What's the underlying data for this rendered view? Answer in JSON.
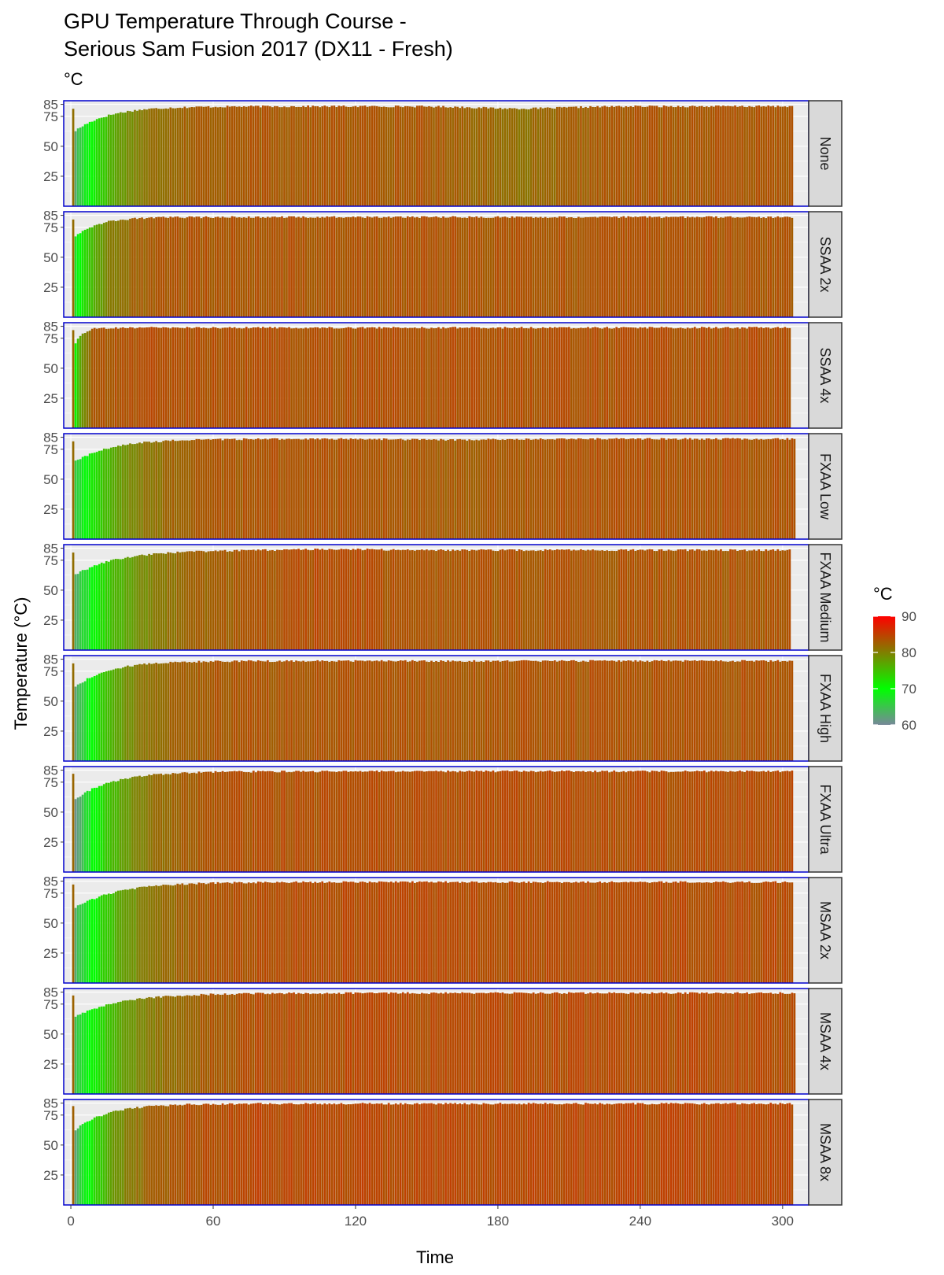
{
  "chart_data": {
    "type": "bar",
    "title": "GPU Temperature Through Course -",
    "title_line2": "Serious Sam Fusion 2017 (DX11 - Fresh)",
    "subtitle": "°C",
    "xlabel": "Time",
    "ylabel": "Temperature (°C)",
    "xlim": [
      -3,
      311
    ],
    "ylim": [
      0,
      88
    ],
    "x_ticks": [
      0,
      60,
      120,
      180,
      240,
      300
    ],
    "y_ticks": [
      25,
      50,
      75,
      85
    ],
    "legend": {
      "title": "°C",
      "position": "right",
      "scale_min": 60,
      "scale_max": 90,
      "ticks": [
        60,
        70,
        80,
        90
      ],
      "colors": [
        "#778899",
        "#00FF00",
        "#FF0000"
      ]
    },
    "panels": [
      {
        "label": "None",
        "n": 304,
        "start": 63,
        "plateau": 83.3,
        "tau": 14,
        "bump": -1.8,
        "bump_at": 190,
        "spike_x": 1
      },
      {
        "label": "SSAA 2x",
        "n": 304,
        "start": 68,
        "plateau": 83.5,
        "tau": 10,
        "bump": 0,
        "bump_at": 0,
        "spike_x": 1
      },
      {
        "label": "SSAA 4x",
        "n": 303,
        "start": 70,
        "plateau": 83.8,
        "tau": 3,
        "bump": 0,
        "bump_at": 0,
        "spike_x": 1
      },
      {
        "label": "FXAA Low",
        "n": 305,
        "start": 65,
        "plateau": 83.6,
        "tau": 16,
        "bump": -0.8,
        "bump_at": 160,
        "spike_x": 1
      },
      {
        "label": "FXAA Medium",
        "n": 303,
        "start": 63,
        "plateau": 83.4,
        "tau": 18,
        "bump": 0.8,
        "bump_at": 110,
        "spike_x": 1
      },
      {
        "label": "FXAA High",
        "n": 304,
        "start": 62,
        "plateau": 83.5,
        "tau": 14,
        "bump": 0,
        "bump_at": 0,
        "spike_x": 1
      },
      {
        "label": "FXAA Ultra",
        "n": 304,
        "start": 61,
        "plateau": 84.0,
        "tau": 16,
        "bump": 0,
        "bump_at": 0,
        "spike_x": 1
      },
      {
        "label": "MSAA 2x",
        "n": 304,
        "start": 63,
        "plateau": 84.2,
        "tau": 18,
        "bump": 0,
        "bump_at": 0,
        "spike_x": 1
      },
      {
        "label": "MSAA 4x",
        "n": 305,
        "start": 65,
        "plateau": 84.2,
        "tau": 20,
        "bump": 0,
        "bump_at": 0,
        "spike_x": 1
      },
      {
        "label": "MSAA 8x",
        "n": 304,
        "start": 63,
        "plateau": 84.5,
        "tau": 14,
        "bump": 0,
        "bump_at": 0,
        "spike_x": 1
      }
    ]
  }
}
